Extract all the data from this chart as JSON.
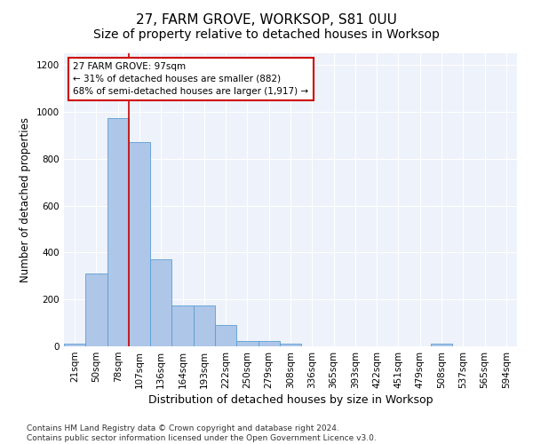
{
  "title": "27, FARM GROVE, WORKSOP, S81 0UU",
  "subtitle": "Size of property relative to detached houses in Worksop",
  "xlabel": "Distribution of detached houses by size in Worksop",
  "ylabel": "Number of detached properties",
  "categories": [
    "21sqm",
    "50sqm",
    "78sqm",
    "107sqm",
    "136sqm",
    "164sqm",
    "193sqm",
    "222sqm",
    "250sqm",
    "279sqm",
    "308sqm",
    "336sqm",
    "365sqm",
    "393sqm",
    "422sqm",
    "451sqm",
    "479sqm",
    "508sqm",
    "537sqm",
    "565sqm",
    "594sqm"
  ],
  "values": [
    10,
    310,
    975,
    870,
    370,
    175,
    175,
    90,
    22,
    22,
    10,
    0,
    0,
    0,
    0,
    0,
    0,
    10,
    0,
    0,
    0
  ],
  "bar_color": "#aec6e8",
  "bar_edge_color": "#5a9fd4",
  "vline_color": "#cc0000",
  "annotation_text": "27 FARM GROVE: 97sqm\n← 31% of detached houses are smaller (882)\n68% of semi-detached houses are larger (1,917) →",
  "annotation_box_color": "#ffffff",
  "annotation_box_edge": "#cc0000",
  "ylim": [
    0,
    1250
  ],
  "yticks": [
    0,
    200,
    400,
    600,
    800,
    1000,
    1200
  ],
  "footer": "Contains HM Land Registry data © Crown copyright and database right 2024.\nContains public sector information licensed under the Open Government Licence v3.0.",
  "bg_color": "#eef2fa",
  "title_fontsize": 11,
  "axis_label_fontsize": 8.5,
  "tick_fontsize": 7.5,
  "footer_fontsize": 6.5
}
